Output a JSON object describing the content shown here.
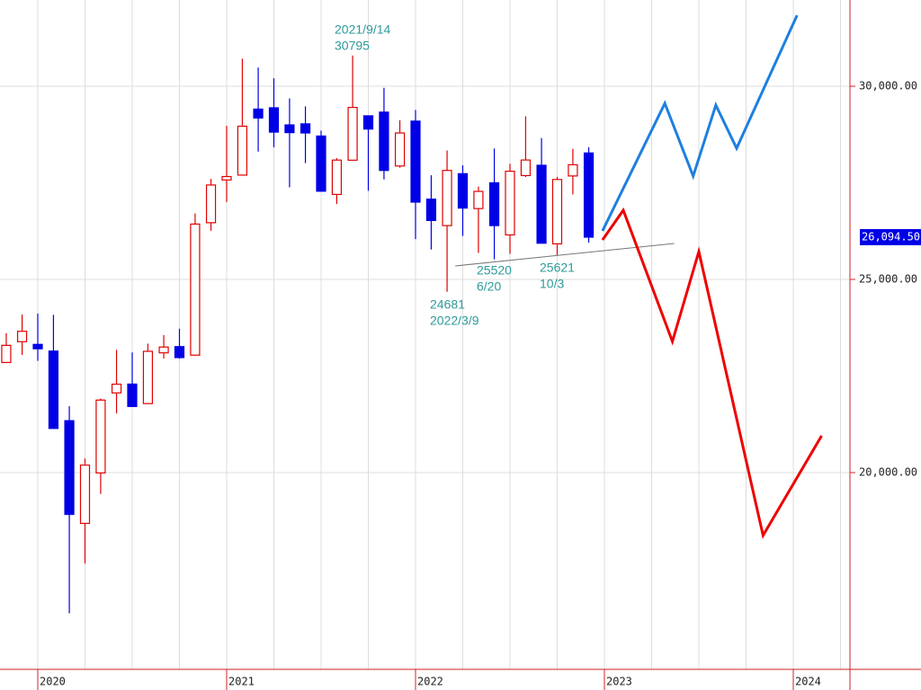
{
  "chart_data": {
    "type": "candlestick",
    "x": [
      2019.833,
      2019.917,
      2020.0,
      2020.083,
      2020.167,
      2020.25,
      2020.333,
      2020.417,
      2020.5,
      2020.583,
      2020.667,
      2020.75,
      2020.833,
      2020.917,
      2021.0,
      2021.083,
      2021.167,
      2021.25,
      2021.333,
      2021.417,
      2021.5,
      2021.583,
      2021.667,
      2021.75,
      2021.833,
      2021.917,
      2022.0,
      2022.083,
      2022.167,
      2022.25,
      2022.333,
      2022.417,
      2022.5,
      2022.583,
      2022.667,
      2022.75,
      2022.833,
      2022.917
    ],
    "open": [
      22850,
      23388,
      23319,
      23145,
      21344,
      18686,
      19991,
      22062,
      22291,
      21786,
      23100,
      23261,
      23040,
      26468,
      27575,
      27700,
      29409,
      29443,
      29000,
      29027,
      28712,
      27200,
      28086,
      29235,
      29331,
      27936,
      29098,
      27078,
      26393,
      27737,
      26834,
      27502,
      26153,
      27688,
      27955,
      25921,
      27678,
      28273
    ],
    "high": [
      23608,
      24091,
      24115,
      24083,
      21719,
      20365,
      21916,
      23178,
      23110,
      23338,
      23560,
      23725,
      26706,
      27602,
      28979,
      30714,
      30485,
      30208,
      29685,
      29480,
      28852,
      28139,
      30795,
      29235,
      29960,
      29121,
      29388,
      27696,
      28338,
      27955,
      27403,
      28389,
      27994,
      29222,
      28659,
      27654,
      28383,
      28423
    ],
    "low": [
      22850,
      23044,
      22892,
      21143,
      16358,
      17646,
      19448,
      21530,
      21710,
      21786,
      22952,
      22948,
      23040,
      26260,
      27002,
      27700,
      28308,
      28418,
      27385,
      28010,
      27272,
      26954,
      28086,
      27293,
      27589,
      27893,
      26044,
      25775,
      24681,
      26126,
      25688,
      25520,
      25662,
      27651,
      25937,
      25621,
      27199,
      25953
    ],
    "close": [
      23294,
      23657,
      23205,
      21143,
      18917,
      20193,
      21877,
      22288,
      21710,
      23139,
      23250,
      22977,
      26433,
      27444,
      27663,
      28966,
      29179,
      28813,
      28800,
      28791,
      27283,
      28089,
      29452,
      28892,
      27821,
      28791,
      27001,
      26526,
      27821,
      26847,
      27279,
      26393,
      27801,
      28091,
      25937,
      27587,
      27969,
      26094
    ],
    "up_color": "#e00000",
    "down_color": "#0000e6",
    "series": [
      {
        "color": "#1e7fe0",
        "x": [
          2022.99,
          2023.32,
          2023.47,
          2023.59,
          2023.7,
          2024.02
        ],
        "values": [
          26256,
          29558,
          27674,
          29512,
          28395,
          31837
        ]
      },
      {
        "color": "#ee0000",
        "x": [
          2022.99,
          2023.1,
          2023.36,
          2023.5,
          2023.84,
          2024.15
        ],
        "values": [
          26023,
          26791,
          23395,
          25721,
          18372,
          20953
        ]
      }
    ],
    "trendline": {
      "color": "#777777",
      "x": [
        2022.21,
        2023.37
      ],
      "values": [
        25349,
        25930
      ]
    },
    "annotations": [
      {
        "date": "2021/9/14",
        "value": 30795
      },
      {
        "value": 24681,
        "date": "2022/3/9"
      },
      {
        "value": 25520,
        "date": "6/20"
      },
      {
        "value": 25621,
        "date": "10/3"
      }
    ],
    "last_price": {
      "value": 26094.5,
      "label": "26,094.50"
    },
    "xlim": [
      2019.8,
      2024.3
    ],
    "ylim": [
      14907,
      32233
    ],
    "xticks": [
      2020,
      2021,
      2022,
      2023,
      2024
    ],
    "xgrid": [
      2020.25,
      2020.5,
      2020.75,
      2021.25,
      2021.5,
      2021.75,
      2022.25,
      2022.5,
      2022.75,
      2023.25,
      2023.5,
      2023.75,
      2024.25
    ],
    "yticks": [
      {
        "value": 20000,
        "label": "20,000.00"
      },
      {
        "value": 25000,
        "label": "25,000.00"
      },
      {
        "value": 30000,
        "label": "30,000.00"
      }
    ],
    "grid": true
  }
}
